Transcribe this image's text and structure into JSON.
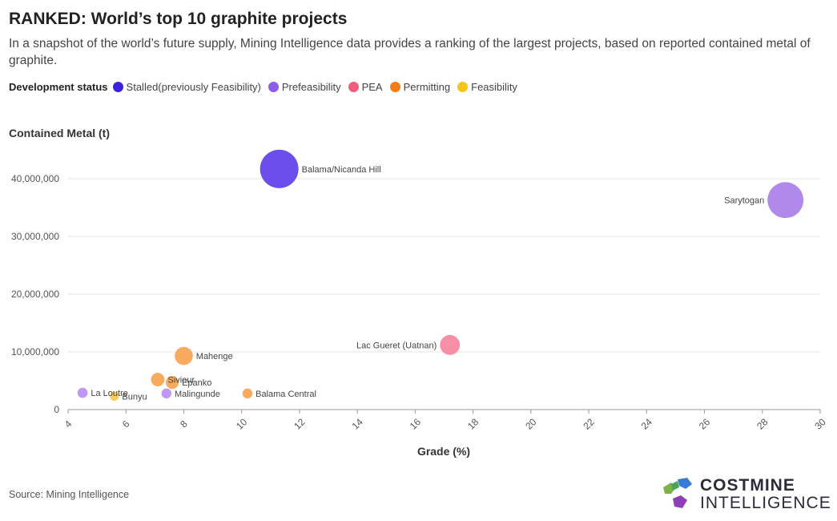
{
  "header": {
    "title": "RANKED: World’s top 10 graphite projects",
    "subtitle": "In a snapshot of the world’s future supply, Mining Intelligence data provides a ranking of the largest projects, based on reported contained metal of graphite."
  },
  "legend": {
    "title": "Development status",
    "items": [
      {
        "label": "Stalled(previously Feasibility)",
        "color": "#3d22e0"
      },
      {
        "label": "Prefeasibility",
        "color": "#8e5cea"
      },
      {
        "label": "PEA",
        "color": "#f25c7f"
      },
      {
        "label": "Permitting",
        "color": "#f57c10"
      },
      {
        "label": "Feasibility",
        "color": "#f5c518"
      }
    ]
  },
  "chart_data": {
    "type": "scatter",
    "xlabel": "Grade (%)",
    "ylabel": "Contained Metal (t)",
    "xlim": [
      4,
      30
    ],
    "ylim": [
      0,
      45000000
    ],
    "xticks": [
      4,
      6,
      8,
      10,
      12,
      14,
      16,
      18,
      20,
      22,
      24,
      26,
      28,
      30
    ],
    "yticks": [
      0,
      10000000,
      20000000,
      30000000,
      40000000
    ],
    "ytick_labels": [
      "0",
      "10,000,000",
      "20,000,000",
      "30,000,000",
      "40,000,000"
    ],
    "grid": "horizontal",
    "bubble_size": "contained metal",
    "points": [
      {
        "label": "Balama/Nicanda Hill",
        "x": 11.3,
        "y": 41700000,
        "status": "Stalled(previously Feasibility)",
        "color": "#5b3bea",
        "label_side": "right"
      },
      {
        "label": "Sarytogan",
        "x": 28.8,
        "y": 36300000,
        "status": "Prefeasibility",
        "color": "#a77ce8",
        "label_side": "left"
      },
      {
        "label": "Lac Gueret (Uatnan)",
        "x": 17.2,
        "y": 11200000,
        "status": "PEA",
        "color": "#f783a0",
        "label_side": "left"
      },
      {
        "label": "Mahenge",
        "x": 8.0,
        "y": 9300000,
        "status": "Permitting",
        "color": "#f7a24e",
        "label_side": "right"
      },
      {
        "label": "Siviour",
        "x": 7.1,
        "y": 5200000,
        "status": "Permitting",
        "color": "#f7a24e",
        "label_side": "right"
      },
      {
        "label": "Epanko",
        "x": 7.6,
        "y": 4700000,
        "status": "Permitting",
        "color": "#f7a24e",
        "label_side": "right"
      },
      {
        "label": "La Loutre",
        "x": 4.5,
        "y": 2900000,
        "status": "Prefeasibility",
        "color": "#b98cf0",
        "label_side": "right"
      },
      {
        "label": "Bunyu",
        "x": 5.6,
        "y": 2300000,
        "status": "Feasibility",
        "color": "#f7c84a",
        "label_side": "right"
      },
      {
        "label": "Malingunde",
        "x": 7.4,
        "y": 2800000,
        "status": "Prefeasibility",
        "color": "#b98cf0",
        "label_side": "right"
      },
      {
        "label": "Balama Central",
        "x": 10.2,
        "y": 2800000,
        "status": "Permitting",
        "color": "#f7a24e",
        "label_side": "right"
      }
    ]
  },
  "footer": {
    "source": "Source: Mining Intelligence",
    "logo_line1": "COSTMINE",
    "logo_line2": "INTELLIGENCE"
  }
}
